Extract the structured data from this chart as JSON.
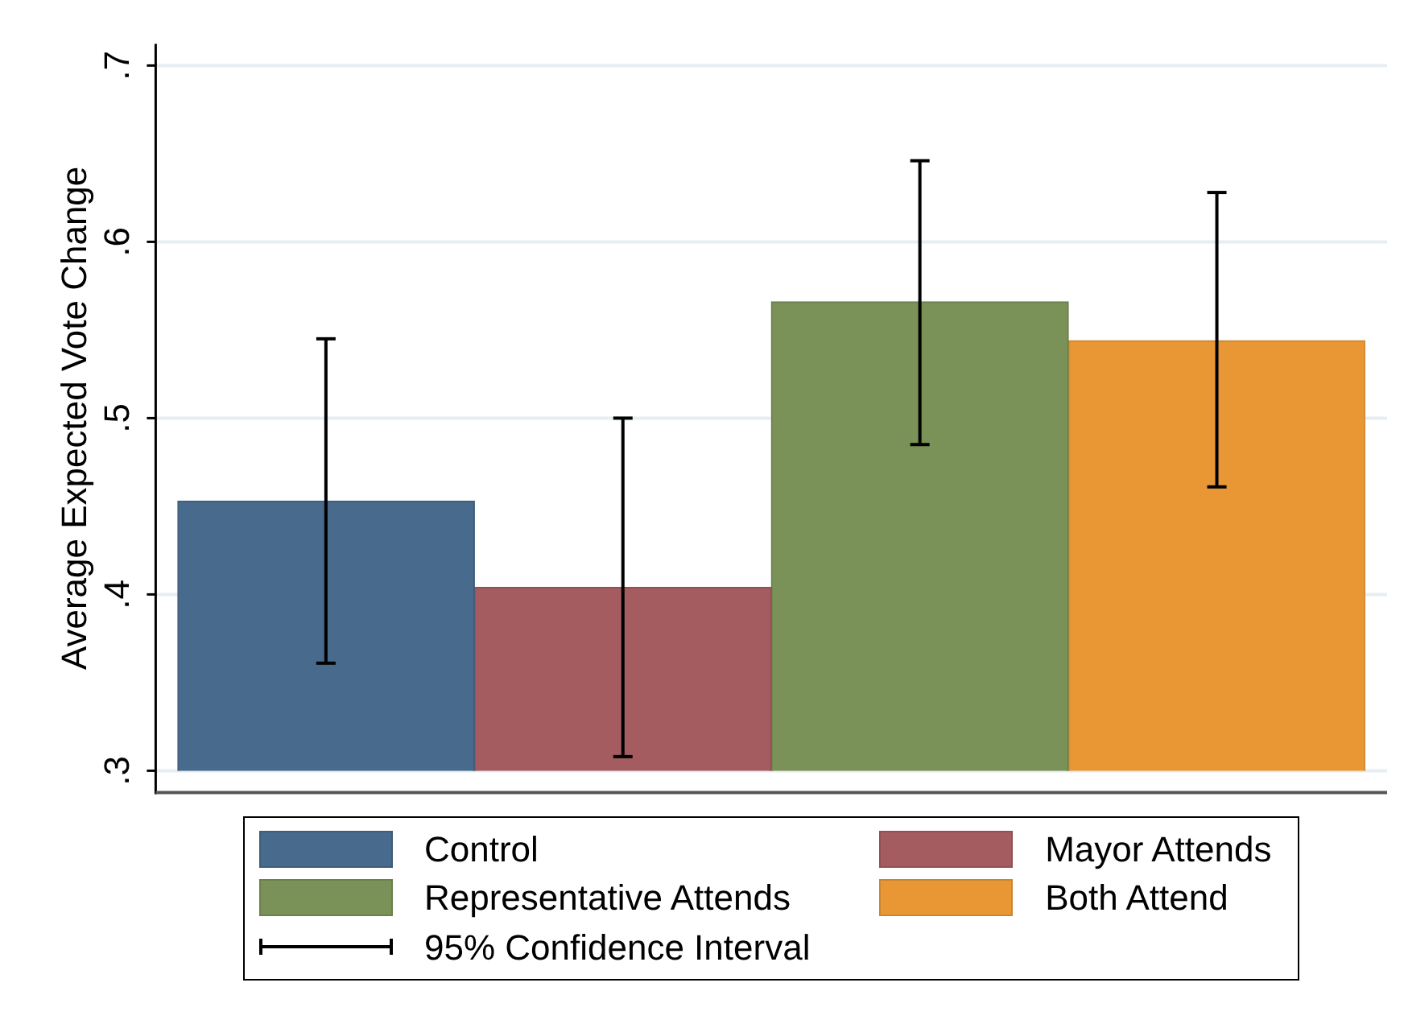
{
  "chart_data": {
    "type": "bar",
    "ylabel": "Average Expected Vote Change",
    "categories": [
      null
    ],
    "series": [
      {
        "name": "Control",
        "color": "#486a8c",
        "values": [
          0.453
        ],
        "errors": [
          [
            0.361,
            0.545
          ]
        ]
      },
      {
        "name": "Mayor Attends",
        "color": "#a55c60",
        "values": [
          0.404
        ],
        "errors": [
          [
            0.308,
            0.5
          ]
        ]
      },
      {
        "name": "Representative Attends",
        "color": "#7a9157",
        "values": [
          0.566
        ],
        "errors": [
          [
            0.485,
            0.646
          ]
        ]
      },
      {
        "name": "Both Attend",
        "color": "#e99735",
        "values": [
          0.544
        ],
        "errors": [
          [
            0.461,
            0.628
          ]
        ]
      }
    ],
    "ylim": [
      0.3,
      0.7
    ],
    "yticks": [
      {
        "value": 0.3,
        "label": ".3"
      },
      {
        "value": 0.4,
        "label": ".4"
      },
      {
        "value": 0.5,
        "label": ".5"
      },
      {
        "value": 0.6,
        "label": ".6"
      },
      {
        "value": 0.7,
        "label": ".7"
      }
    ],
    "grid": "y",
    "legend": "bottom",
    "annotations": [
      "95% Confidence Interval"
    ]
  }
}
